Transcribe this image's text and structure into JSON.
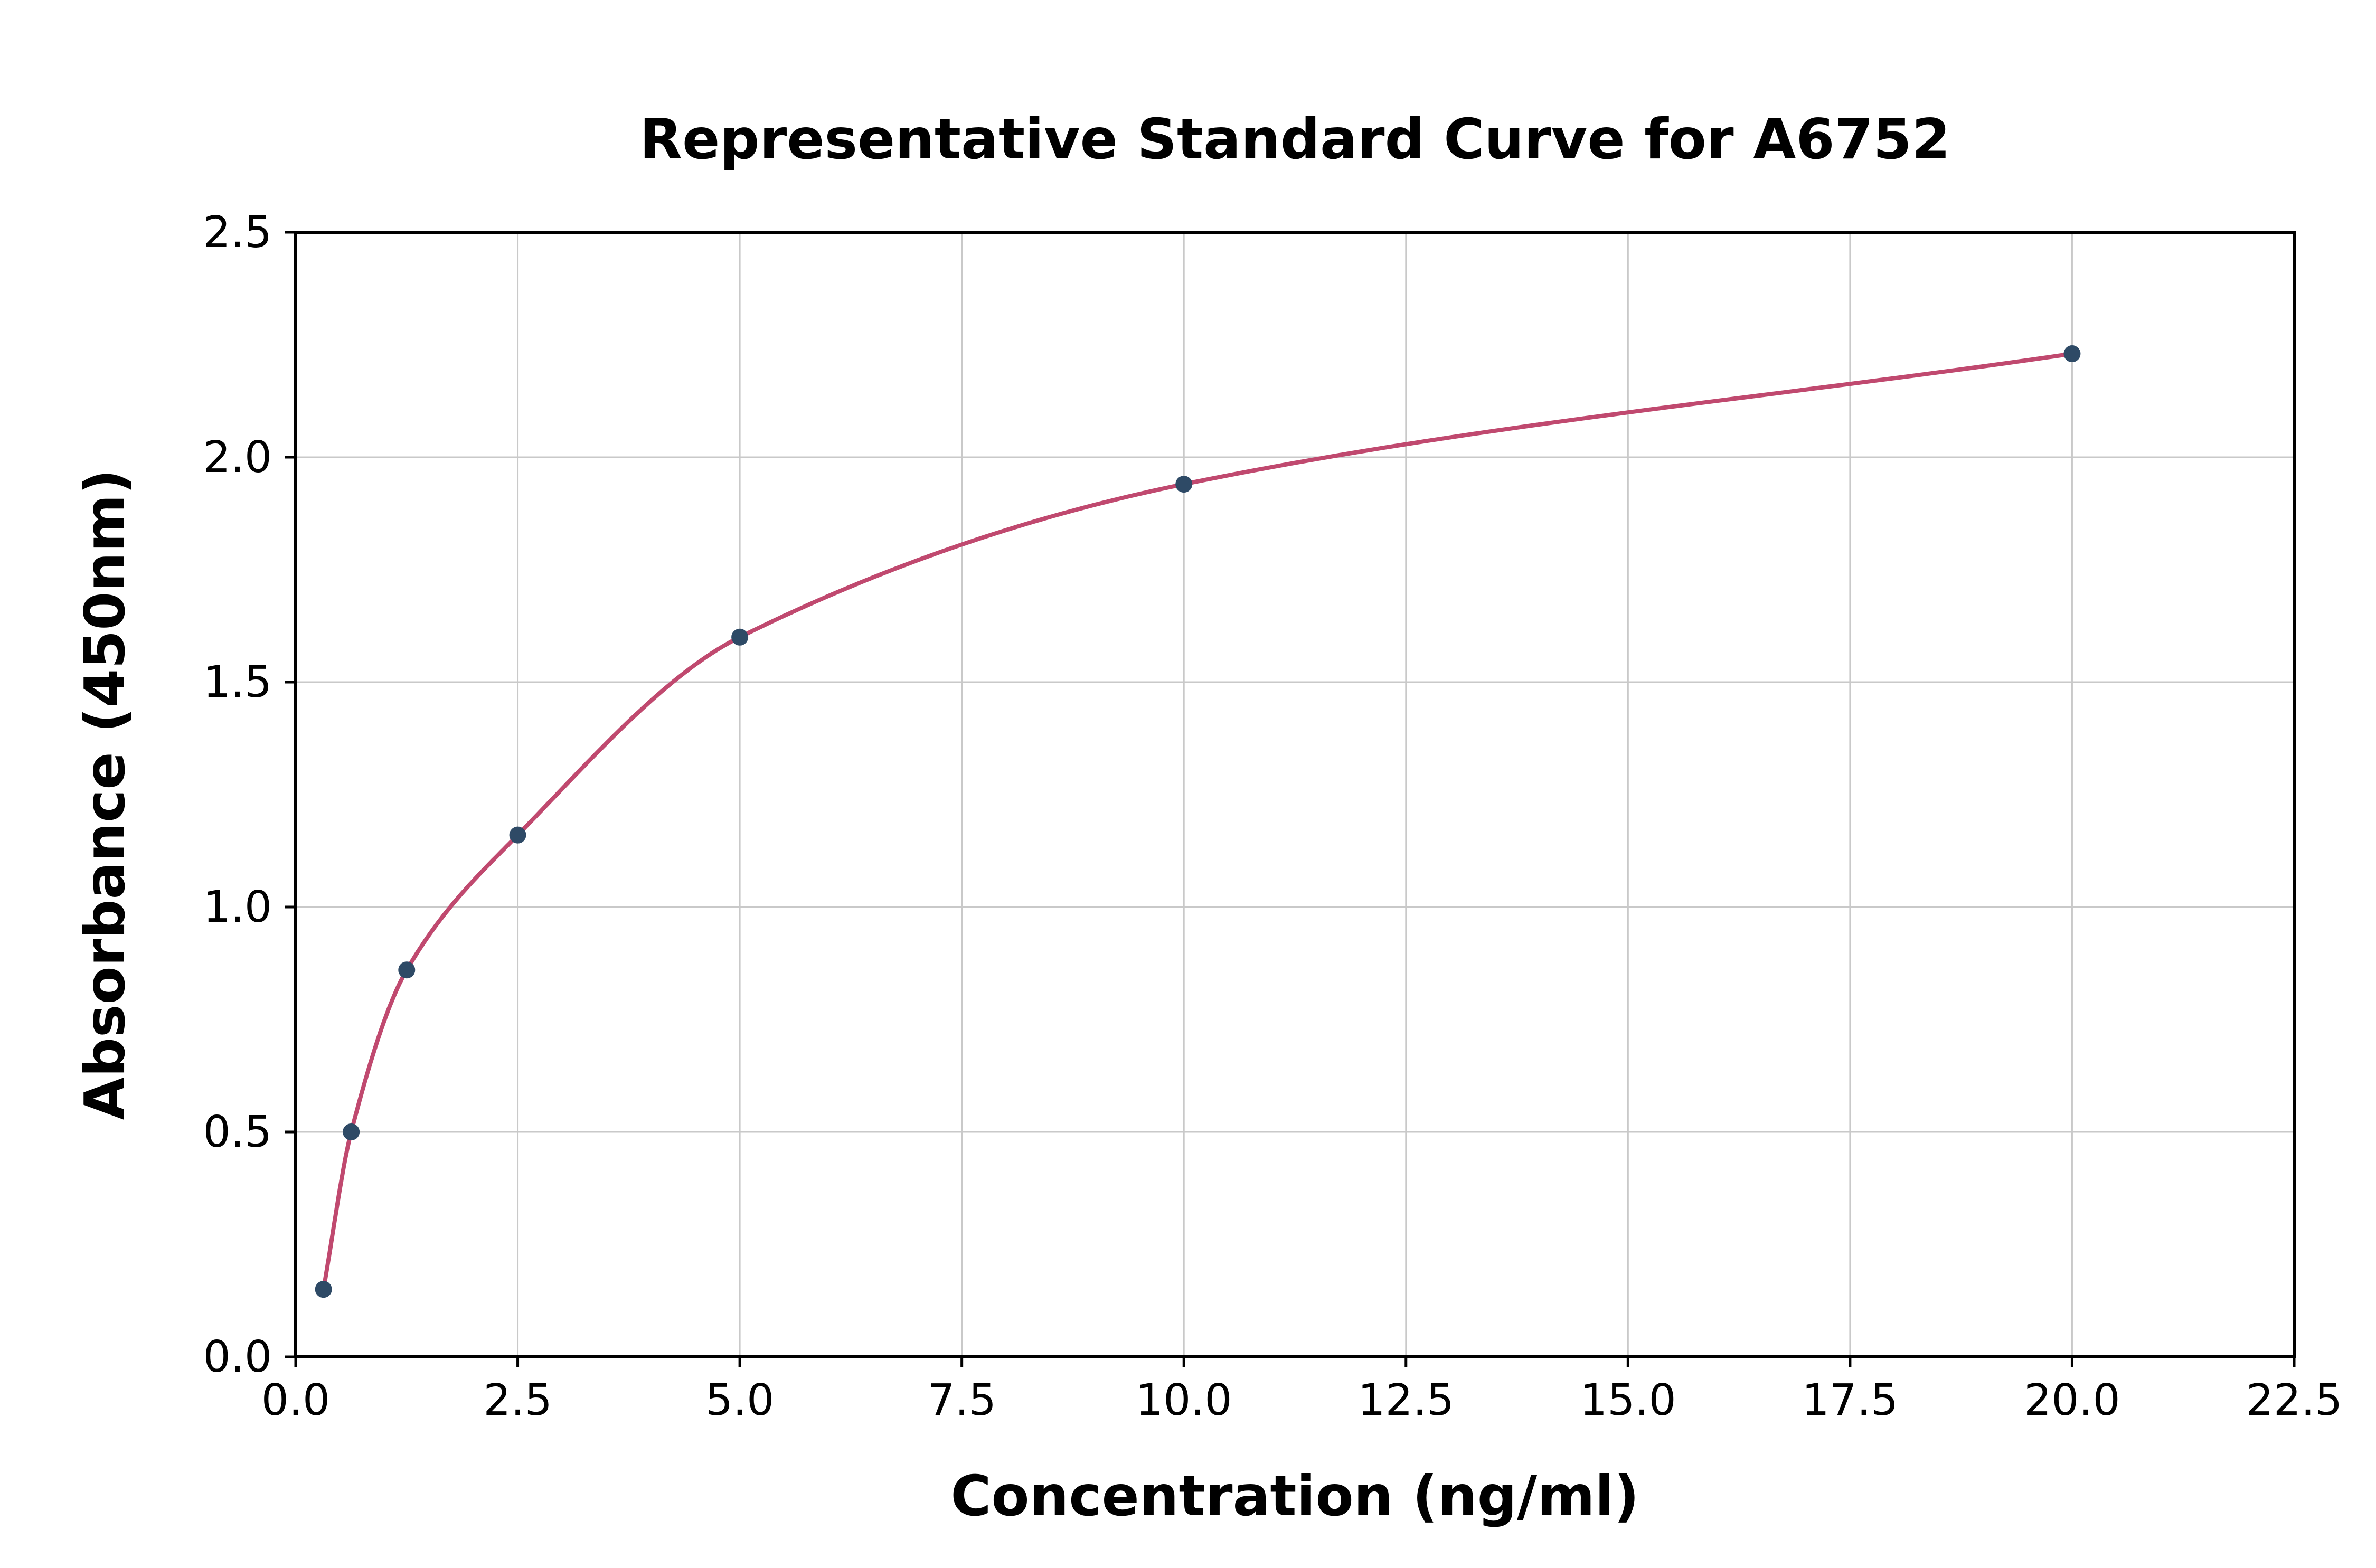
{
  "page": {
    "background_color": "#ffffff"
  },
  "chart_data": {
    "type": "scatter",
    "title": "Representative Standard Curve for A6752",
    "xlabel": "Concentration (ng/ml)",
    "ylabel": "Absorbance (450nm)",
    "xlim": [
      0,
      22.5
    ],
    "ylim": [
      0,
      2.5
    ],
    "x_ticks": [
      0.0,
      2.5,
      5.0,
      7.5,
      10.0,
      12.5,
      15.0,
      17.5,
      20.0,
      22.5
    ],
    "y_ticks": [
      0.0,
      0.5,
      1.0,
      1.5,
      2.0,
      2.5
    ],
    "grid": true,
    "legend": "none",
    "series": [
      {
        "name": "Standard",
        "x": [
          0.313,
          0.625,
          1.25,
          2.5,
          5.0,
          10.0,
          20.0
        ],
        "y": [
          0.15,
          0.5,
          0.86,
          1.16,
          1.6,
          1.94,
          2.23
        ]
      }
    ],
    "styles": {
      "point_color": "#2e4a66",
      "curve_color": "#c0496f",
      "grid_color": "#c9c9c9",
      "spine_color": "#000000"
    }
  }
}
